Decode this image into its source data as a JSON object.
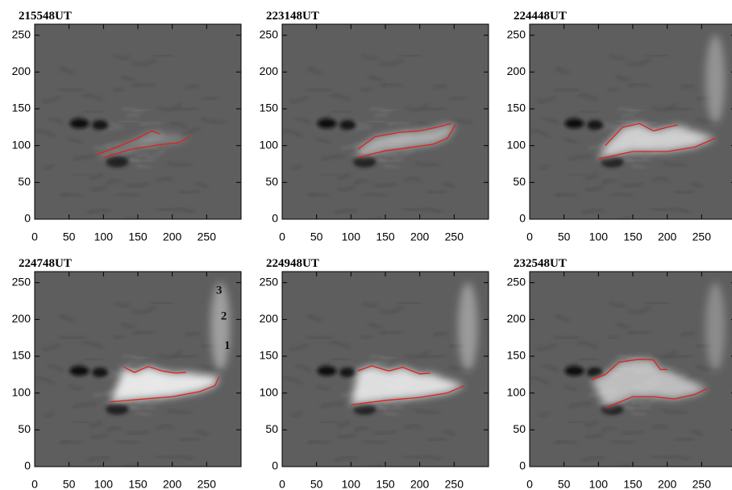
{
  "chart_data": [
    {
      "type": "image",
      "title": "215548UT",
      "xlim": [
        0,
        300
      ],
      "ylim": [
        0,
        265
      ],
      "xticks": [
        0,
        50,
        100,
        150,
        200,
        250
      ],
      "yticks": [
        0,
        50,
        100,
        150,
        200,
        250
      ]
    },
    {
      "type": "image",
      "title": "223148UT",
      "xlim": [
        0,
        300
      ],
      "ylim": [
        0,
        265
      ],
      "xticks": [
        0,
        50,
        100,
        150,
        200,
        250
      ],
      "yticks": [
        0,
        50,
        100,
        150,
        200,
        250
      ]
    },
    {
      "type": "image",
      "title": "224448UT",
      "xlim": [
        0,
        300
      ],
      "ylim": [
        0,
        265
      ],
      "xticks": [
        0,
        50,
        100,
        150,
        200,
        250
      ],
      "yticks": [
        0,
        50,
        100,
        150,
        200,
        250
      ]
    },
    {
      "type": "image",
      "title": "224748UT",
      "xlim": [
        0,
        300
      ],
      "ylim": [
        0,
        265
      ],
      "xticks": [
        0,
        50,
        100,
        150,
        200,
        250
      ],
      "yticks": [
        0,
        50,
        100,
        150,
        200,
        250
      ],
      "annotations": [
        "3",
        "2",
        "1"
      ]
    },
    {
      "type": "image",
      "title": "224948UT",
      "xlim": [
        0,
        300
      ],
      "ylim": [
        0,
        265
      ],
      "xticks": [
        0,
        50,
        100,
        150,
        200,
        250
      ],
      "yticks": [
        0,
        50,
        100,
        150,
        200,
        250
      ]
    },
    {
      "type": "image",
      "title": "232548UT",
      "xlim": [
        0,
        300
      ],
      "ylim": [
        0,
        265
      ],
      "xticks": [
        0,
        50,
        100,
        150,
        200,
        250
      ],
      "yticks": [
        0,
        50,
        100,
        150,
        200,
        250
      ]
    }
  ]
}
